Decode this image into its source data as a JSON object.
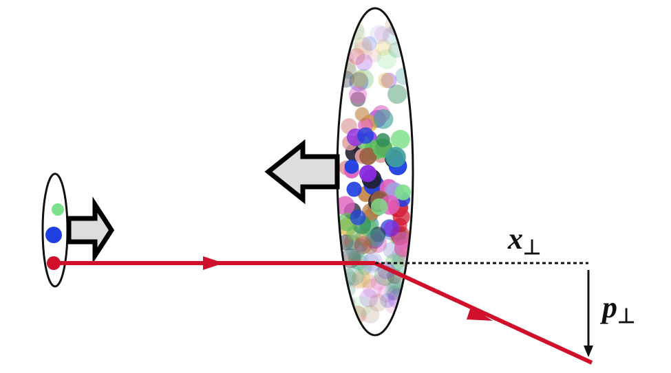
{
  "labels": [
    {
      "symbol": "x",
      "subscript": "⊥"
    },
    {
      "symbol": "p",
      "subscript": "⊥"
    }
  ]
}
